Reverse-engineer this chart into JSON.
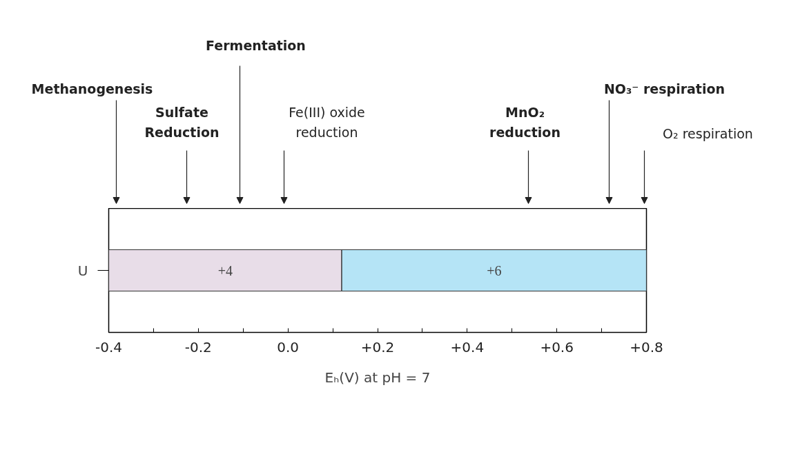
{
  "chart_data": {
    "type": "bar",
    "orientation": "horizontal",
    "categories": [
      "U"
    ],
    "series": [
      {
        "name": "+4",
        "color": "#e8dde8",
        "values": [
          0.52
        ],
        "base": [
          -0.4
        ]
      },
      {
        "name": "+6",
        "color": "#b5e4f6",
        "values": [
          0.68
        ],
        "base": [
          0.12
        ]
      }
    ],
    "xlabel": "Eₕ(V) at pH = 7",
    "xlim": [
      -0.4,
      0.8
    ],
    "xticks": [
      {
        "value": -0.4,
        "label": "-0.4"
      },
      {
        "value": -0.3,
        "label": null
      },
      {
        "value": -0.2,
        "label": "-0.2"
      },
      {
        "value": -0.1,
        "label": null
      },
      {
        "value": 0.0,
        "label": "0.0"
      },
      {
        "value": 0.1,
        "label": null
      },
      {
        "value": 0.2,
        "label": "+0.2"
      },
      {
        "value": 0.3,
        "label": null
      },
      {
        "value": 0.4,
        "label": "+0.4"
      },
      {
        "value": 0.5,
        "label": null
      },
      {
        "value": 0.6,
        "label": "+0.6"
      },
      {
        "value": 0.7,
        "label": null
      },
      {
        "value": 0.8,
        "label": "+0.8"
      }
    ],
    "annotations": [
      "Methanogenesis",
      "Sulfate\nReduction",
      "Fermentation",
      "Fe(III) oxide\nreduction",
      "MnO₂\nreduction",
      "NO₃⁻ respiration",
      "O₂ respiration"
    ],
    "grid": false
  }
}
